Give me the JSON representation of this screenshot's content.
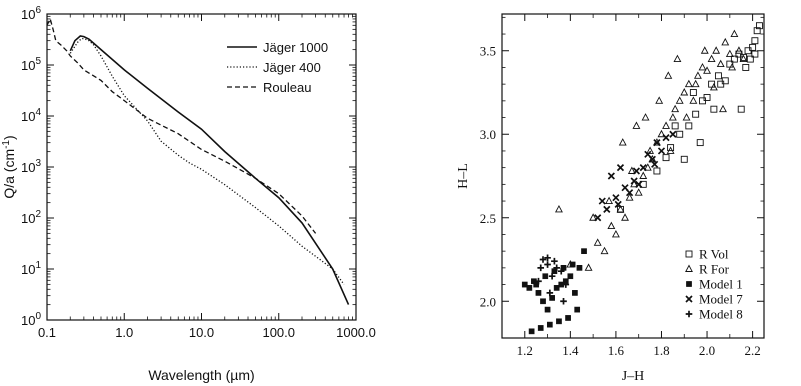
{
  "chart_data": [
    {
      "type": "line",
      "title": "",
      "xlabel": "Wavelength (µm)",
      "ylabel": "Q/a (cm",
      "ylabel_sup": "-1",
      "ylabel_tail": ")",
      "xscale": "log",
      "yscale": "log",
      "xlim": [
        0.1,
        1000
      ],
      "ylim": [
        1,
        1000000
      ],
      "x_ticks": [
        {
          "value": 0.1,
          "label": "0.1"
        },
        {
          "value": 1,
          "label": "1.0"
        },
        {
          "value": 10,
          "label": "10.0"
        },
        {
          "value": 100,
          "label": "100.0"
        },
        {
          "value": 1000,
          "label": "1000.0"
        }
      ],
      "y_ticks": [
        {
          "value": 1,
          "base": "10",
          "exp": "0"
        },
        {
          "value": 10,
          "base": "10",
          "exp": "1"
        },
        {
          "value": 100,
          "base": "10",
          "exp": "2"
        },
        {
          "value": 1000,
          "base": "10",
          "exp": "3"
        },
        {
          "value": 10000,
          "base": "10",
          "exp": "4"
        },
        {
          "value": 100000,
          "base": "10",
          "exp": "5"
        },
        {
          "value": 1000000,
          "base": "10",
          "exp": "6"
        }
      ],
      "legend_position": "top-right",
      "series": [
        {
          "name": "Jäger 1000",
          "style": "solid",
          "x": [
            0.2,
            0.23,
            0.27,
            0.3,
            0.35,
            0.5,
            1,
            2,
            5,
            10,
            20,
            50,
            100,
            200,
            500,
            800
          ],
          "y": [
            190000,
            300000,
            370000,
            360000,
            320000,
            200000,
            80000,
            35000,
            12000,
            5500,
            2000,
            600,
            250,
            80,
            10,
            2
          ]
        },
        {
          "name": "Jäger 400",
          "style": "dotted",
          "x": [
            0.2,
            0.25,
            0.28,
            0.3,
            0.35,
            0.4,
            0.5,
            0.7,
            1,
            2,
            3,
            5,
            7,
            10,
            20,
            50,
            100,
            200,
            500,
            700
          ],
          "y": [
            170000,
            280000,
            330000,
            330000,
            300000,
            250000,
            150000,
            60000,
            25000,
            8000,
            3200,
            1700,
            1200,
            900,
            450,
            160,
            70,
            28,
            10,
            5
          ]
        },
        {
          "name": "Rouleau",
          "style": "dashed",
          "x": [
            0.1,
            0.11,
            0.12,
            0.13,
            0.15,
            0.18,
            0.2,
            0.25,
            0.3,
            0.5,
            0.7,
            1,
            2,
            5,
            10,
            20,
            50,
            100,
            200,
            300
          ],
          "y": [
            600000,
            800000,
            500000,
            300000,
            250000,
            190000,
            150000,
            110000,
            80000,
            50000,
            30000,
            20000,
            9000,
            4500,
            2200,
            1300,
            600,
            300,
            110,
            50
          ]
        }
      ]
    },
    {
      "type": "scatter",
      "title": "",
      "xlabel": "J–H",
      "ylabel": "H–L",
      "xlim": [
        1.1,
        2.25
      ],
      "ylim": [
        1.78,
        3.72
      ],
      "x_ticks": [
        {
          "value": 1.2,
          "label": "1.2"
        },
        {
          "value": 1.4,
          "label": "1.4"
        },
        {
          "value": 1.6,
          "label": "1.6"
        },
        {
          "value": 1.8,
          "label": "1.8"
        },
        {
          "value": 2.0,
          "label": "2.0"
        },
        {
          "value": 2.2,
          "label": "2.2"
        }
      ],
      "y_ticks": [
        {
          "value": 2.0,
          "label": "2.0"
        },
        {
          "value": 2.5,
          "label": "2.5"
        },
        {
          "value": 3.0,
          "label": "3.0"
        },
        {
          "value": 3.5,
          "label": "3.5"
        }
      ],
      "legend_position": "bottom-right",
      "series": [
        {
          "name": "R Vol",
          "marker": "open-square",
          "x": [
            1.62,
            1.72,
            1.78,
            1.82,
            1.84,
            1.88,
            1.92,
            1.95,
            1.98,
            2.0,
            2.02,
            2.05,
            2.08,
            2.1,
            2.12,
            2.14,
            2.16,
            2.18,
            2.19,
            2.2,
            2.21,
            2.22,
            2.23,
            1.9,
            1.97,
            2.03,
            2.06,
            2.15,
            2.17,
            2.21,
            1.86,
            1.94
          ],
          "y": [
            2.55,
            2.7,
            2.78,
            2.86,
            2.92,
            3.0,
            3.05,
            3.12,
            3.2,
            3.22,
            3.3,
            3.35,
            3.32,
            3.42,
            3.45,
            3.48,
            3.46,
            3.5,
            3.45,
            3.52,
            3.56,
            3.62,
            3.65,
            2.85,
            2.95,
            3.15,
            3.3,
            3.15,
            3.4,
            3.48,
            3.05,
            3.25
          ]
        },
        {
          "name": "R For",
          "marker": "open-triangle",
          "x": [
            1.35,
            1.4,
            1.48,
            1.52,
            1.55,
            1.58,
            1.6,
            1.62,
            1.64,
            1.66,
            1.68,
            1.7,
            1.72,
            1.74,
            1.75,
            1.76,
            1.78,
            1.8,
            1.82,
            1.84,
            1.85,
            1.86,
            1.88,
            1.9,
            1.92,
            1.94,
            1.96,
            1.98,
            2.0,
            2.02,
            2.04,
            2.06,
            2.08,
            2.1,
            2.12,
            2.14,
            2.16,
            1.5,
            1.63,
            1.69,
            1.73,
            1.79,
            1.83,
            1.87,
            1.91,
            1.95,
            1.99,
            2.03,
            2.07,
            2.11,
            1.57,
            1.67
          ],
          "y": [
            2.55,
            2.22,
            2.2,
            2.35,
            2.3,
            2.45,
            2.4,
            2.55,
            2.5,
            2.62,
            2.7,
            2.65,
            2.75,
            2.8,
            2.9,
            2.85,
            2.95,
            3.0,
            3.05,
            2.9,
            3.1,
            3.15,
            3.2,
            3.25,
            3.3,
            3.2,
            3.35,
            3.4,
            3.38,
            3.45,
            3.5,
            3.42,
            3.55,
            3.48,
            3.6,
            3.5,
            3.45,
            2.5,
            2.95,
            3.05,
            3.1,
            3.2,
            3.35,
            3.45,
            3.1,
            3.3,
            3.5,
            3.28,
            3.15,
            3.4,
            2.6,
            2.78
          ]
        },
        {
          "name": "Model 1",
          "marker": "filled-square",
          "x": [
            1.2,
            1.22,
            1.24,
            1.26,
            1.28,
            1.3,
            1.32,
            1.34,
            1.36,
            1.38,
            1.4,
            1.42,
            1.44,
            1.46,
            1.23,
            1.27,
            1.31,
            1.35,
            1.39,
            1.43,
            1.25,
            1.29,
            1.33,
            1.37,
            1.41
          ],
          "y": [
            2.1,
            2.08,
            2.12,
            2.05,
            2.0,
            1.95,
            2.02,
            2.08,
            2.1,
            2.12,
            2.15,
            2.05,
            2.2,
            2.3,
            1.82,
            1.84,
            1.86,
            1.88,
            1.9,
            1.95,
            2.1,
            2.15,
            2.18,
            2.2,
            2.22
          ]
        },
        {
          "name": "Model 7",
          "marker": "cross",
          "x": [
            1.52,
            1.56,
            1.6,
            1.64,
            1.68,
            1.72,
            1.76,
            1.8,
            1.58,
            1.62,
            1.66,
            1.7,
            1.74,
            1.78,
            1.82,
            1.54,
            1.61,
            1.69,
            1.77,
            1.85
          ],
          "y": [
            2.5,
            2.55,
            2.62,
            2.68,
            2.72,
            2.8,
            2.85,
            2.9,
            2.75,
            2.8,
            2.65,
            2.7,
            2.88,
            2.95,
            2.98,
            2.6,
            2.58,
            2.78,
            2.82,
            3.0
          ]
        },
        {
          "name": "Model 8",
          "marker": "plus",
          "x": [
            1.28,
            1.3,
            1.33,
            1.36,
            1.38,
            1.3,
            1.34,
            1.32,
            1.37,
            1.27,
            1.26,
            1.31
          ],
          "y": [
            2.25,
            2.26,
            2.24,
            2.18,
            2.1,
            2.22,
            2.2,
            2.15,
            2.0,
            2.2,
            2.12,
            2.05
          ]
        }
      ]
    }
  ]
}
